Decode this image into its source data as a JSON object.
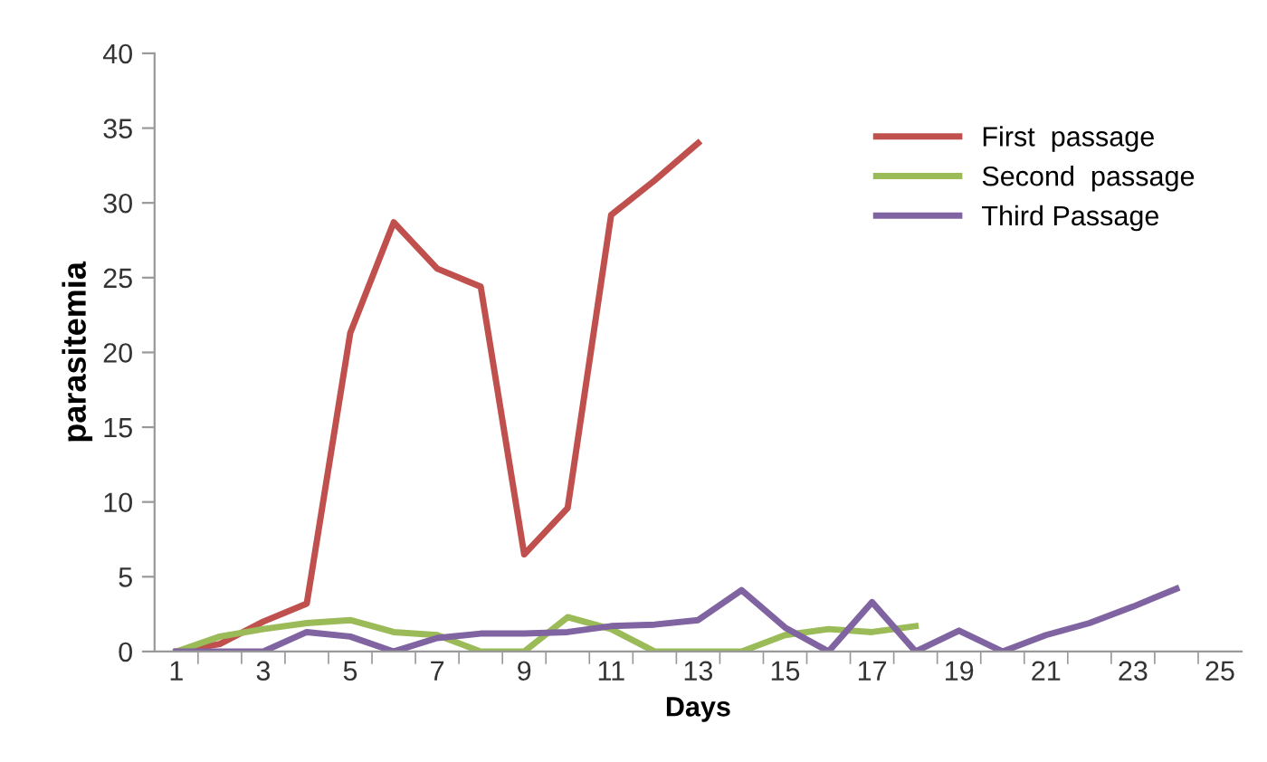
{
  "chart_data": {
    "type": "line",
    "xlabel": "Days",
    "ylabel": "parasitemia",
    "categories": [
      "1",
      null,
      "3",
      null,
      "5",
      null,
      "7",
      null,
      "9",
      null,
      "11",
      null,
      "13",
      null,
      "15",
      null,
      "17",
      null,
      "19",
      null,
      "21",
      null,
      "23",
      null,
      "25"
    ],
    "series": [
      {
        "name": "First  passage",
        "color": "#c0504d",
        "values": [
          0,
          0.5,
          2,
          3.2,
          21.3,
          28.7,
          25.6,
          24.4,
          6.5,
          9.6,
          29.2,
          31.5,
          34,
          null,
          null,
          null,
          null,
          null,
          null,
          null,
          null,
          null,
          null,
          null,
          null
        ]
      },
      {
        "name": "Second  passage",
        "color": "#9bbb59",
        "values": [
          0,
          1,
          1.5,
          1.9,
          2.1,
          1.3,
          1.1,
          0,
          0,
          2.3,
          1.5,
          0,
          0,
          0,
          1.1,
          1.5,
          1.3,
          1.7,
          null,
          null,
          null,
          null,
          null,
          null,
          null
        ]
      },
      {
        "name": "Third Passage",
        "color": "#8064a2",
        "values": [
          0,
          0,
          0,
          1.3,
          1,
          0,
          0.9,
          1.2,
          1.2,
          1.3,
          1.7,
          1.8,
          2.1,
          4.1,
          1.6,
          0,
          3.3,
          0,
          1.4,
          0,
          1.1,
          1.9,
          3,
          4.2,
          null
        ]
      }
    ],
    "ylim": [
      0,
      40
    ],
    "yticks": [
      0,
      5,
      10,
      15,
      20,
      25,
      30,
      35,
      40
    ],
    "legend": "top right",
    "marker": "none",
    "line_style": "solid"
  }
}
